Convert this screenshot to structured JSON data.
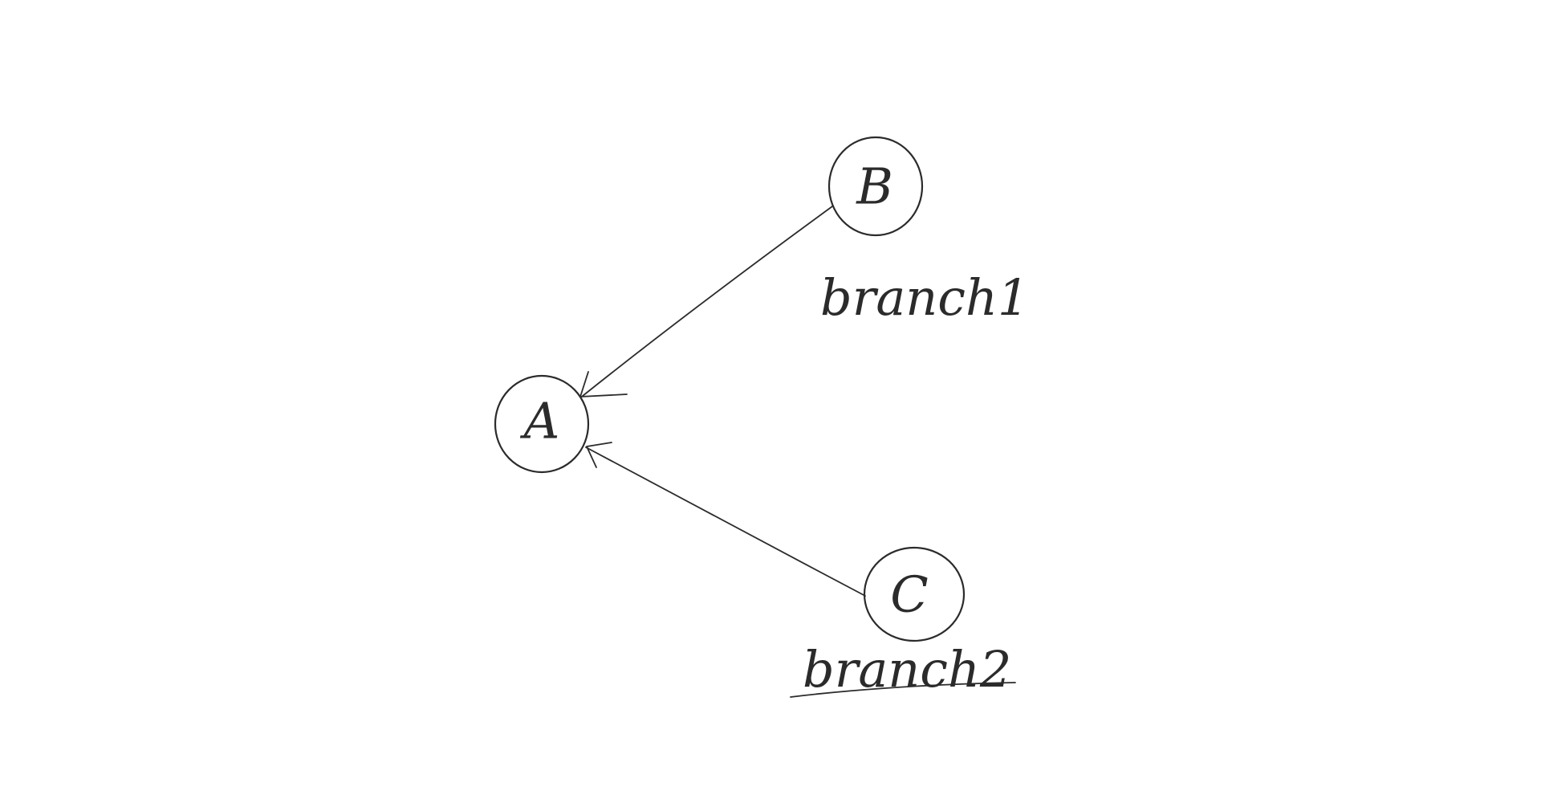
{
  "diagram": {
    "colors": {
      "ink": "#2b2b2b",
      "background": "#ffffff"
    },
    "nodes": [
      {
        "id": "A",
        "label": "A"
      },
      {
        "id": "B",
        "label": "B"
      },
      {
        "id": "C",
        "label": "C"
      }
    ],
    "edges": [
      {
        "from": "B",
        "to": "A"
      },
      {
        "from": "C",
        "to": "A"
      }
    ],
    "branches": [
      {
        "label": "branch1",
        "points_to": "B"
      },
      {
        "label": "branch2",
        "points_to": "C"
      }
    ]
  }
}
